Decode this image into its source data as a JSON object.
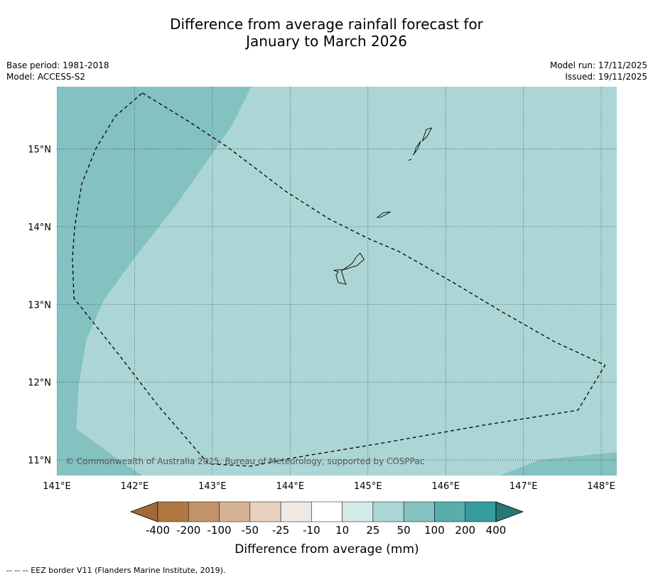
{
  "header": {
    "title_line1": "Difference from average rainfall forecast for",
    "title_line2": "January to March 2026",
    "base_period": "Base period: 1981-2018",
    "model": "Model: ACCESS-S2",
    "model_run": "Model run: 17/11/2025",
    "issued": "Issued: 19/11/2025"
  },
  "map": {
    "lon_range": [
      141.0,
      148.2
    ],
    "lat_range": [
      10.8,
      15.8
    ],
    "lon_ticks": [
      141,
      142,
      143,
      144,
      145,
      146,
      147,
      148
    ],
    "lat_ticks": [
      11,
      12,
      13,
      14,
      15
    ],
    "lon_tick_labels": [
      "141°E",
      "142°E",
      "143°E",
      "144°E",
      "145°E",
      "146°E",
      "147°E",
      "148°E"
    ],
    "lat_tick_labels": [
      "11°N",
      "12°N",
      "13°N",
      "14°N",
      "15°N"
    ],
    "background_category": "25 to 50",
    "wetter_region_category": "50 to 100",
    "copyright": "© Commonwealth of Australia 2025, Bureau of Meteorology, supported by COSPPac",
    "wetter_region_west": [
      [
        141.0,
        15.8
      ],
      [
        143.5,
        15.8
      ],
      [
        143.25,
        15.3
      ],
      [
        142.55,
        14.3
      ],
      [
        142.0,
        13.6
      ],
      [
        141.6,
        13.05
      ],
      [
        141.38,
        12.55
      ],
      [
        141.28,
        11.95
      ],
      [
        141.25,
        11.4
      ],
      [
        141.8,
        11.0
      ],
      [
        142.1,
        10.8
      ],
      [
        141.0,
        10.8
      ]
    ],
    "wetter_region_south": [
      [
        146.7,
        10.8
      ],
      [
        148.2,
        10.8
      ],
      [
        148.2,
        11.1
      ],
      [
        147.7,
        11.05
      ],
      [
        147.2,
        11.0
      ]
    ],
    "eez_border": [
      [
        142.1,
        15.72
      ],
      [
        142.7,
        15.35
      ],
      [
        143.2,
        15.02
      ],
      [
        143.95,
        14.45
      ],
      [
        144.5,
        14.1
      ],
      [
        145.0,
        13.85
      ],
      [
        145.4,
        13.68
      ],
      [
        146.1,
        13.28
      ],
      [
        146.7,
        12.92
      ],
      [
        147.4,
        12.52
      ],
      [
        148.05,
        12.22
      ],
      [
        147.7,
        11.64
      ],
      [
        146.5,
        11.45
      ],
      [
        145.2,
        11.22
      ],
      [
        144.0,
        11.02
      ],
      [
        143.5,
        10.92
      ],
      [
        142.95,
        10.95
      ],
      [
        142.3,
        11.7
      ],
      [
        141.8,
        12.35
      ],
      [
        141.22,
        13.08
      ],
      [
        141.2,
        13.6
      ],
      [
        141.23,
        14.0
      ],
      [
        141.32,
        14.55
      ],
      [
        141.5,
        15.0
      ],
      [
        141.75,
        15.42
      ],
      [
        142.1,
        15.72
      ]
    ],
    "islands": [
      {
        "name": "Guam",
        "coords": [
          [
            144.7,
            13.45
          ],
          [
            144.86,
            13.5
          ],
          [
            144.95,
            13.58
          ],
          [
            144.9,
            13.66
          ],
          [
            144.85,
            13.61
          ],
          [
            144.8,
            13.53
          ],
          [
            144.66,
            13.43
          ],
          [
            144.7,
            13.3
          ],
          [
            144.72,
            13.26
          ],
          [
            144.62,
            13.28
          ],
          [
            144.59,
            13.38
          ],
          [
            144.62,
            13.42
          ],
          [
            144.56,
            13.44
          ],
          [
            144.7,
            13.45
          ]
        ]
      },
      {
        "name": "Rota",
        "coords": [
          [
            145.12,
            14.12
          ],
          [
            145.2,
            14.18
          ],
          [
            145.29,
            14.19
          ],
          [
            145.22,
            14.15
          ],
          [
            145.16,
            14.12
          ],
          [
            145.12,
            14.12
          ]
        ]
      },
      {
        "name": "Tinian",
        "coords": [
          [
            145.58,
            14.92
          ],
          [
            145.64,
            15.0
          ],
          [
            145.68,
            15.1
          ],
          [
            145.62,
            15.02
          ],
          [
            145.6,
            14.95
          ],
          [
            145.58,
            14.92
          ]
        ]
      },
      {
        "name": "Saipan",
        "coords": [
          [
            145.7,
            15.1
          ],
          [
            145.76,
            15.16
          ],
          [
            145.82,
            15.27
          ],
          [
            145.75,
            15.25
          ],
          [
            145.72,
            15.16
          ],
          [
            145.7,
            15.1
          ]
        ]
      },
      {
        "name": "Aguijan",
        "coords": [
          [
            145.52,
            14.85
          ],
          [
            145.56,
            14.87
          ]
        ]
      }
    ]
  },
  "colorbar": {
    "labels": [
      "-400",
      "-200",
      "-100",
      "-50",
      "-25",
      "-10",
      "10",
      "25",
      "50",
      "100",
      "200",
      "400"
    ],
    "colors": [
      "#a06a35",
      "#b07842",
      "#c0936a",
      "#d4b393",
      "#e7d1bc",
      "#efe8e3",
      "#ffffff",
      "#d4eae8",
      "#acd6d5",
      "#84c1c1",
      "#5aadad",
      "#369b9b",
      "#267878"
    ],
    "title": "Difference from average (mm)"
  },
  "footnote": "--  --  -- EEZ border V11 (Flanders Marine Institute, 2019)."
}
